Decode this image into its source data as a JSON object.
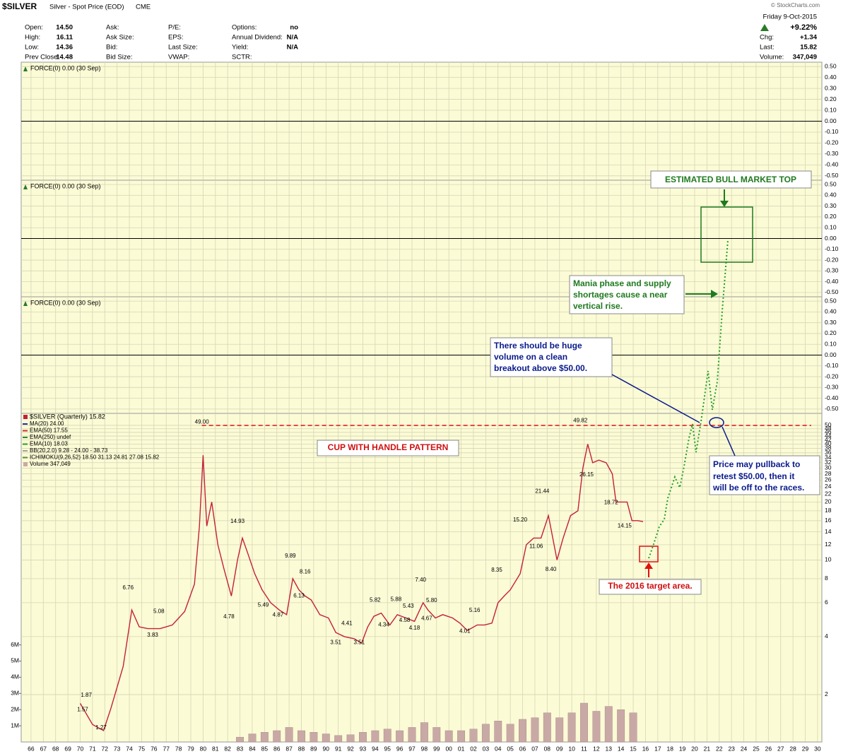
{
  "header": {
    "symbol": "$SILVER",
    "description": "Silver - Spot Price (EOD)",
    "exchange": "CME",
    "source": "© StockCharts.com",
    "date": "Friday  9-Oct-2015",
    "change_pct": "+9.22%",
    "quote": [
      {
        "label": "Chg:",
        "value": "+1.34"
      },
      {
        "label": "Last:",
        "value": "15.82"
      },
      {
        "label": "Volume:",
        "value": "347,049"
      }
    ],
    "fields": [
      [
        {
          "label": "Open:",
          "value": "14.50"
        },
        {
          "label": "High:",
          "value": "16.11"
        },
        {
          "label": "Low:",
          "value": "14.36"
        },
        {
          "label": "Prev Close:",
          "value": "14.48"
        }
      ],
      [
        {
          "label": "Ask:"
        },
        {
          "label": "Ask Size:"
        },
        {
          "label": "Bid:"
        },
        {
          "label": "Bid Size:"
        }
      ],
      [
        {
          "label": "P/E:"
        },
        {
          "label": "EPS:"
        },
        {
          "label": "Last Size:"
        },
        {
          "label": "VWAP:"
        }
      ],
      [
        {
          "label": "Options:",
          "value": "no"
        },
        {
          "label": "Annual Dividend:",
          "value": "N/A"
        },
        {
          "label": "Yield:",
          "value": "N/A"
        },
        {
          "label": "SCTR:"
        }
      ]
    ]
  },
  "chart_data": [
    {
      "type": "line",
      "title": "FORCE(0) 0.00 (30 Sep)",
      "ylim": [
        -0.54,
        0.54
      ],
      "yticks": [
        {
          "value": 0.5,
          "label": "0.50"
        },
        {
          "value": 0.4,
          "label": "0.40"
        },
        {
          "value": 0.3,
          "label": "0.30"
        },
        {
          "value": 0.2,
          "label": "0.20"
        },
        {
          "value": 0.1,
          "label": "0.10"
        },
        {
          "value": 0,
          "label": "0.00"
        },
        {
          "value": -0.1,
          "label": "-0.10"
        },
        {
          "value": -0.2,
          "label": "-0.20"
        },
        {
          "value": -0.3,
          "label": "-0.30"
        },
        {
          "value": -0.4,
          "label": "-0.40"
        },
        {
          "value": -0.5,
          "label": "-0.50"
        }
      ]
    },
    {
      "type": "line",
      "title": "FORCE(0) 0.00 (30 Sep)",
      "ylim": [
        -0.54,
        0.54
      ],
      "yticks": [
        {
          "value": 0.5,
          "label": "0.50"
        },
        {
          "value": 0.4,
          "label": "0.40"
        },
        {
          "value": 0.3,
          "label": "0.30"
        },
        {
          "value": 0.2,
          "label": "0.20"
        },
        {
          "value": 0.1,
          "label": "0.10"
        },
        {
          "value": 0,
          "label": "0.00"
        },
        {
          "value": -0.1,
          "label": "-0.10"
        },
        {
          "value": -0.2,
          "label": "-0.20"
        },
        {
          "value": -0.3,
          "label": "-0.30"
        },
        {
          "value": -0.4,
          "label": "-0.40"
        },
        {
          "value": -0.5,
          "label": "-0.50"
        }
      ]
    },
    {
      "type": "line",
      "title": "FORCE(0) 0.00 (30 Sep)",
      "ylim": [
        -0.54,
        0.54
      ],
      "yticks": [
        {
          "value": 0.5,
          "label": "0.50"
        },
        {
          "value": 0.4,
          "label": "0.40"
        },
        {
          "value": 0.3,
          "label": "0.30"
        },
        {
          "value": 0.2,
          "label": "0.20"
        },
        {
          "value": 0.1,
          "label": "0.10"
        },
        {
          "value": 0,
          "label": "0.00"
        },
        {
          "value": -0.1,
          "label": "-0.10"
        },
        {
          "value": -0.2,
          "label": "-0.20"
        },
        {
          "value": -0.3,
          "label": "-0.30"
        },
        {
          "value": -0.4,
          "label": "-0.40"
        },
        {
          "value": -0.5,
          "label": "-0.50"
        }
      ]
    },
    {
      "type": "line",
      "log_scale": true,
      "grid": true,
      "xlim": [
        1965.2,
        2030.35
      ],
      "xticks": [
        {
          "value": 1966,
          "label": "66"
        },
        {
          "value": 1967,
          "label": "67"
        },
        {
          "value": 1968,
          "label": "68"
        },
        {
          "value": 1969,
          "label": "69"
        },
        {
          "value": 1970,
          "label": "70"
        },
        {
          "value": 1971,
          "label": "71"
        },
        {
          "value": 1972,
          "label": "72"
        },
        {
          "value": 1973,
          "label": "73"
        },
        {
          "value": 1974,
          "label": "74"
        },
        {
          "value": 1975,
          "label": "75"
        },
        {
          "value": 1976,
          "label": "76"
        },
        {
          "value": 1977,
          "label": "77"
        },
        {
          "value": 1978,
          "label": "78"
        },
        {
          "value": 1979,
          "label": "79"
        },
        {
          "value": 1980,
          "label": "80"
        },
        {
          "value": 1981,
          "label": "81"
        },
        {
          "value": 1982,
          "label": "82"
        },
        {
          "value": 1983,
          "label": "83"
        },
        {
          "value": 1984,
          "label": "84"
        },
        {
          "value": 1985,
          "label": "85"
        },
        {
          "value": 1986,
          "label": "86"
        },
        {
          "value": 1987,
          "label": "87"
        },
        {
          "value": 1988,
          "label": "88"
        },
        {
          "value": 1989,
          "label": "89"
        },
        {
          "value": 1990,
          "label": "90"
        },
        {
          "value": 1991,
          "label": "91"
        },
        {
          "value": 1992,
          "label": "92"
        },
        {
          "value": 1993,
          "label": "93"
        },
        {
          "value": 1994,
          "label": "94"
        },
        {
          "value": 1995,
          "label": "95"
        },
        {
          "value": 1996,
          "label": "96"
        },
        {
          "value": 1997,
          "label": "97"
        },
        {
          "value": 1998,
          "label": "98"
        },
        {
          "value": 1999,
          "label": "99"
        },
        {
          "value": 2000,
          "label": "00"
        },
        {
          "value": 2001,
          "label": "01"
        },
        {
          "value": 2002,
          "label": "02"
        },
        {
          "value": 2003,
          "label": "03"
        },
        {
          "value": 2004,
          "label": "04"
        },
        {
          "value": 2005,
          "label": "05"
        },
        {
          "value": 2006,
          "label": "06"
        },
        {
          "value": 2007,
          "label": "07"
        },
        {
          "value": 2008,
          "label": "08"
        },
        {
          "value": 2009,
          "label": "09"
        },
        {
          "value": 2010,
          "label": "10"
        },
        {
          "value": 2011,
          "label": "11"
        },
        {
          "value": 2012,
          "label": "12"
        },
        {
          "value": 2013,
          "label": "13"
        },
        {
          "value": 2014,
          "label": "14"
        },
        {
          "value": 2015,
          "label": "15"
        },
        {
          "value": 2016,
          "label": "16"
        },
        {
          "value": 2017,
          "label": "17"
        },
        {
          "value": 2018,
          "label": "18"
        },
        {
          "value": 2019,
          "label": "19"
        },
        {
          "value": 2020,
          "label": "20"
        },
        {
          "value": 2021,
          "label": "21"
        },
        {
          "value": 2022,
          "label": "22"
        },
        {
          "value": 2023,
          "label": "23"
        },
        {
          "value": 2024,
          "label": "24"
        },
        {
          "value": 2025,
          "label": "25"
        },
        {
          "value": 2026,
          "label": "26"
        },
        {
          "value": 2027,
          "label": "27"
        },
        {
          "value": 2028,
          "label": "28"
        },
        {
          "value": 2029,
          "label": "29"
        },
        {
          "value": 2030,
          "label": "30"
        }
      ],
      "ylim": [
        1.135,
        57.7
      ],
      "yticks": [
        50,
        48,
        46,
        44,
        42,
        40,
        38,
        36,
        34,
        32,
        30,
        28,
        26,
        24,
        22,
        20,
        18,
        16,
        14,
        12,
        10,
        8,
        6,
        4,
        2
      ],
      "y2lim": [
        0,
        20300000
      ],
      "y2ticks": [
        {
          "value": 6000000,
          "label": "6M"
        },
        {
          "value": 5000000,
          "label": "5M"
        },
        {
          "value": 4000000,
          "label": "4M"
        },
        {
          "value": 3000000,
          "label": "3M"
        },
        {
          "value": 2000000,
          "label": "2M"
        },
        {
          "value": 1000000,
          "label": "1M"
        }
      ],
      "series": [
        {
          "name": "$SILVER (Quarterly) 15.82",
          "color": "#c4203a",
          "x": [
            1970,
            1971,
            1971.9,
            1972.5,
            1973.5,
            1974.2,
            1974.8,
            1975.5,
            1976.5,
            1977.5,
            1978.5,
            1979.3,
            1979.7,
            1980.0,
            1980.3,
            1980.7,
            1981.2,
            1981.7,
            1982.3,
            1982.8,
            1983.2,
            1983.6,
            1984.2,
            1984.8,
            1985.5,
            1986.2,
            1986.8,
            1987.3,
            1987.8,
            1988.3,
            1988.8,
            1989.5,
            1990.2,
            1990.8,
            1991.5,
            1992.3,
            1992.9,
            1993.4,
            1993.9,
            1994.5,
            1995.2,
            1995.8,
            1996.5,
            1997.2,
            1997.9,
            1998.3,
            1998.9,
            1999.5,
            2000.3,
            2000.9,
            2001.5,
            2002.3,
            2002.9,
            2003.5,
            2004.0,
            2004.5,
            2005.0,
            2005.8,
            2006.3,
            2006.9,
            2007.5,
            2008.1,
            2008.8,
            2009.3,
            2009.9,
            2010.5,
            2010.9,
            2011.3,
            2011.7,
            2012.2,
            2012.8,
            2013.3,
            2013.6,
            2014.0,
            2014.5,
            2014.9,
            2015.4,
            2015.8
          ],
          "values": [
            1.8,
            1.4,
            1.3,
            1.7,
            2.8,
            5.5,
            4.5,
            4.4,
            4.4,
            4.6,
            5.4,
            7.5,
            15,
            35,
            15,
            20,
            12,
            9,
            6.5,
            10,
            13,
            11,
            8.5,
            7,
            6,
            5.5,
            5.2,
            8,
            7,
            6.5,
            6.2,
            5.2,
            5,
            4.2,
            4,
            3.9,
            3.7,
            4.5,
            5.1,
            5.3,
            4.6,
            5.2,
            5,
            4.8,
            6,
            5.5,
            5,
            5.2,
            5,
            4.7,
            4.3,
            4.6,
            4.6,
            4.7,
            6,
            6.5,
            7,
            8.5,
            12,
            13,
            13,
            17,
            10,
            13,
            17,
            18,
            30,
            40,
            32,
            33,
            32,
            28,
            20,
            20,
            20,
            16,
            16,
            15.82
          ]
        },
        {
          "name": "Volume 347,049",
          "color": "#c9a9a6",
          "axis": "y2",
          "type": "bar",
          "x": [
            1983,
            1984,
            1985,
            1986,
            1987,
            1988,
            1989,
            1990,
            1991,
            1992,
            1993,
            1994,
            1995,
            1996,
            1997,
            1998,
            1999,
            2000,
            2001,
            2002,
            2003,
            2004,
            2005,
            2006,
            2007,
            2008,
            2009,
            2010,
            2011,
            2012,
            2013,
            2014,
            2015
          ],
          "values": [
            300000,
            500000,
            600000,
            700000,
            900000,
            700000,
            600000,
            500000,
            400000,
            450000,
            600000,
            700000,
            800000,
            700000,
            900000,
            1200000,
            900000,
            700000,
            700000,
            800000,
            1100000,
            1300000,
            1100000,
            1400000,
            1500000,
            1800000,
            1500000,
            1800000,
            2400000,
            1900000,
            2200000,
            2000000,
            1800000
          ]
        }
      ],
      "indicators": [
        {
          "name": "MA(20) 24.00",
          "color": "#2a2aa8"
        },
        {
          "name": "EMA(50) 17.55",
          "color": "#d03030"
        },
        {
          "name": "EMA(250) undef",
          "color": "#2e8b2e"
        },
        {
          "name": "EMA(10) 18.03",
          "color": "#22a022"
        },
        {
          "name": "BB(20,2.0) 9.28 - 24.00 - 38.73",
          "color": "#a0a0a0"
        },
        {
          "name": "ICHIMOKU(9,26,52) 18.50 31.13 24.81 27.08 15.82",
          "color": "#5a8a3a"
        }
      ],
      "price_labels": {
        "x": [
          1970.5,
          1970.2,
          1971.7,
          1973.9,
          1976.4,
          1975.9,
          1979.9,
          1982.8,
          1982.1,
          1987.1,
          1984.9,
          1986.1,
          1988.3,
          1987.8,
          1990.8,
          1991.7,
          1992.7,
          1994.0,
          1994.7,
          1995.7,
          1996.4,
          1996.7,
          1997.2,
          1997.7,
          1998.6,
          1998.2,
          2001.3,
          2002.1,
          2003.9,
          2005.8,
          2007.6,
          2007.1,
          2008.3,
          2010.7,
          2011.2,
          2013.2,
          2014.3
        ],
        "values": [
          1.87,
          1.57,
          1.27,
          6.76,
          5.08,
          3.83,
          49,
          14.93,
          4.78,
          9.89,
          5.49,
          4.87,
          8.16,
          6.13,
          3.51,
          4.41,
          3.51,
          5.82,
          4.34,
          5.88,
          4.58,
          5.43,
          4.18,
          7.4,
          5.8,
          4.67,
          4.01,
          5.16,
          8.35,
          15.2,
          21.44,
          11.06,
          8.4,
          49.82,
          26.15,
          18.72,
          14.15
        ],
        "value_labels": [
          "1.87",
          "1.57",
          "1.27",
          "6.76",
          "5.08",
          "3.83",
          "49.00",
          "14.93",
          "4.78",
          "9.89",
          "5.49",
          "4.87",
          "8.16",
          "6.13",
          "3.51",
          "4.41",
          "3.51",
          "5.82",
          "4.34",
          "5.88",
          "4.58",
          "5.43",
          "4.18",
          "7.40",
          "5.80",
          "4.67",
          "4.01",
          "5.16",
          "8.35",
          "15.20",
          "21.44",
          "11.06",
          "8.40",
          "49.82",
          "26.15",
          "18.72",
          "14.15"
        ]
      }
    }
  ],
  "annotations": {
    "top": "ESTIMATED BULL MARKET TOP",
    "mania": [
      "Mania phase and supply",
      "shortages cause a near",
      "vertical rise."
    ],
    "volume": [
      "There should be huge",
      "volume on a clean",
      "breakout above $50.00."
    ],
    "pullback": [
      "Price may pullback to",
      "retest  $50.00, then it",
      "will be off to the races."
    ],
    "cup": "CUP WITH HANDLE PATTERN",
    "target": "The 2016 target area."
  }
}
